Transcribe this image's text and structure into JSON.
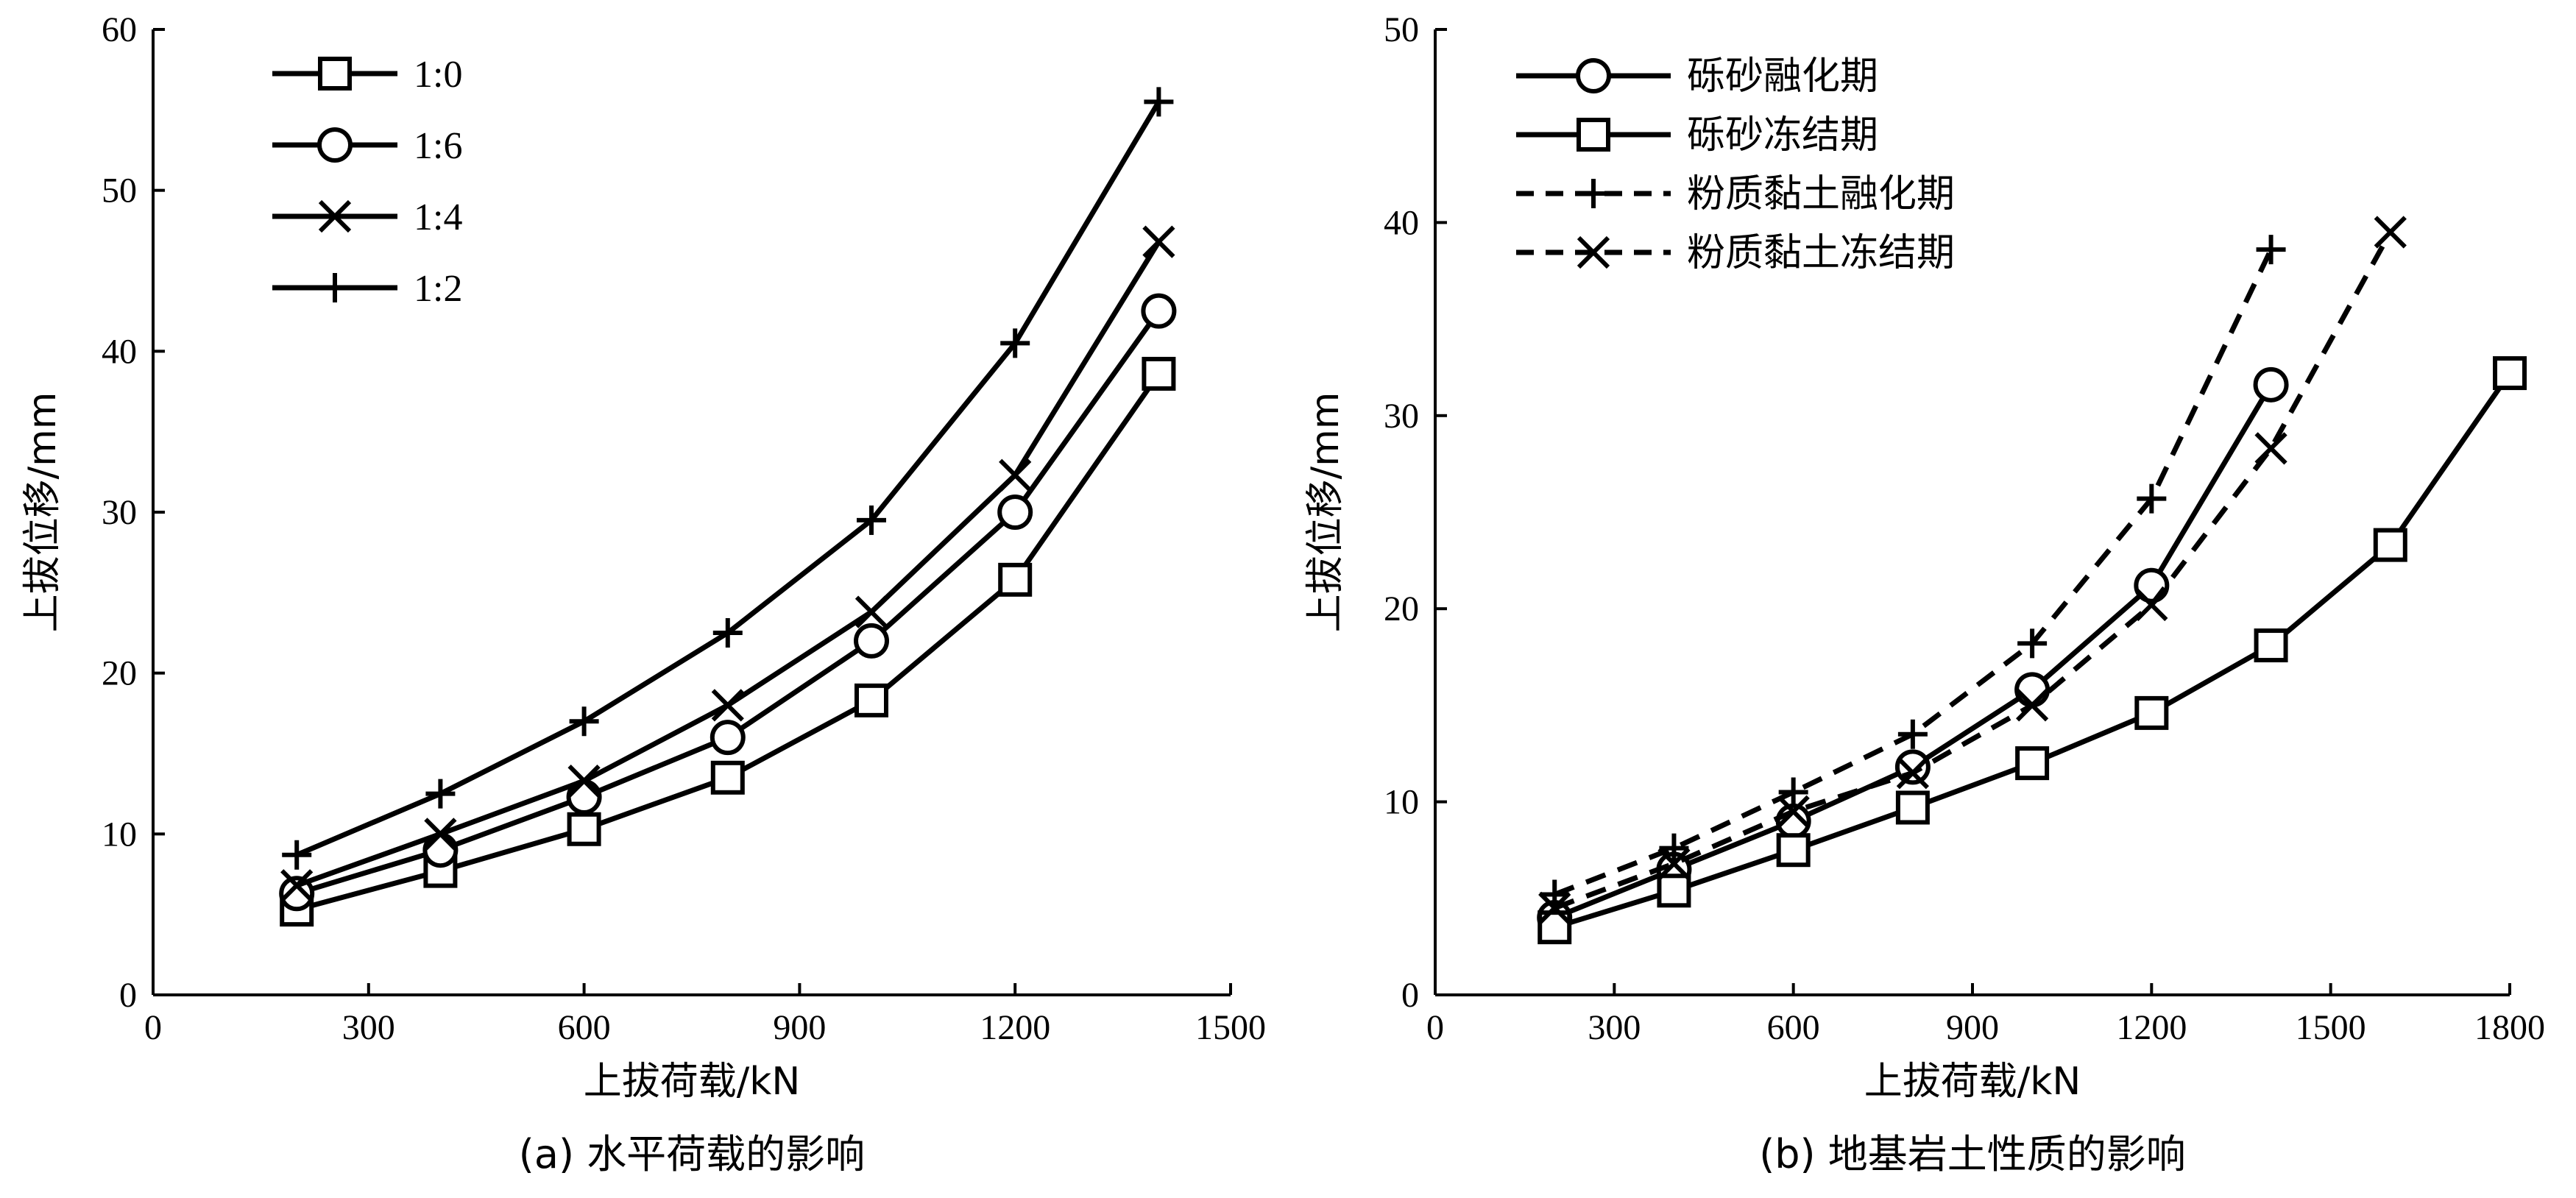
{
  "chart_data": [
    {
      "type": "line",
      "caption": "(a) 水平荷载的影响",
      "xlabel": "上拔荷载/kN",
      "ylabel": "上拔位移/mm",
      "xlim": [
        0,
        1500
      ],
      "ylim": [
        0,
        60
      ],
      "xticks": [
        0,
        300,
        600,
        900,
        1200,
        1500
      ],
      "yticks": [
        0,
        10,
        20,
        30,
        40,
        50,
        60
      ],
      "x": [
        200,
        400,
        600,
        800,
        1000,
        1200,
        1400
      ],
      "legend_position": "top-left",
      "series": [
        {
          "name": "1:0",
          "marker": "square",
          "dash": "solid",
          "values": [
            5.3,
            7.7,
            10.3,
            13.5,
            18.3,
            25.8,
            38.6
          ]
        },
        {
          "name": "1:6",
          "marker": "circle",
          "dash": "solid",
          "values": [
            6.3,
            9.0,
            12.3,
            16.0,
            22.0,
            30.0,
            42.5
          ]
        },
        {
          "name": "1:4",
          "marker": "x",
          "dash": "solid",
          "values": [
            6.8,
            10.0,
            13.3,
            18.0,
            23.8,
            32.3,
            46.8
          ]
        },
        {
          "name": "1:2",
          "marker": "plus",
          "dash": "solid",
          "values": [
            8.7,
            12.5,
            17.0,
            22.5,
            29.5,
            40.5,
            55.5
          ]
        }
      ]
    },
    {
      "type": "line",
      "caption": "(b) 地基岩土性质的影响",
      "xlabel": "上拔荷载/kN",
      "ylabel": "上拔位移/mm",
      "xlim": [
        0,
        1800
      ],
      "ylim": [
        0,
        50
      ],
      "xticks": [
        0,
        300,
        600,
        900,
        1200,
        1500,
        1800
      ],
      "yticks": [
        0,
        10,
        20,
        30,
        40,
        50
      ],
      "legend_position": "top-left",
      "series": [
        {
          "name": "砾砂融化期",
          "marker": "circle",
          "dash": "solid",
          "x": [
            200,
            400,
            600,
            800,
            1000,
            1200,
            1400
          ],
          "values": [
            4.0,
            6.5,
            9.0,
            11.8,
            15.8,
            21.2,
            31.6
          ]
        },
        {
          "name": "砾砂冻结期",
          "marker": "square",
          "dash": "solid",
          "x": [
            200,
            400,
            600,
            800,
            1000,
            1200,
            1400,
            1600,
            1800
          ],
          "values": [
            3.5,
            5.4,
            7.5,
            9.7,
            12.0,
            14.6,
            18.1,
            23.3,
            32.2
          ]
        },
        {
          "name": "粉质黏土融化期",
          "marker": "plus",
          "dash": "dashed",
          "x": [
            200,
            400,
            600,
            800,
            1000,
            1200,
            1400
          ],
          "values": [
            5.2,
            7.6,
            10.5,
            13.5,
            18.2,
            25.7,
            38.6
          ]
        },
        {
          "name": "粉质黏土冻结期",
          "marker": "x",
          "dash": "dashed",
          "x": [
            200,
            400,
            600,
            800,
            1000,
            1200,
            1400,
            1600
          ],
          "values": [
            4.5,
            6.8,
            9.5,
            11.5,
            15.0,
            20.2,
            28.3,
            39.5
          ]
        }
      ]
    }
  ]
}
